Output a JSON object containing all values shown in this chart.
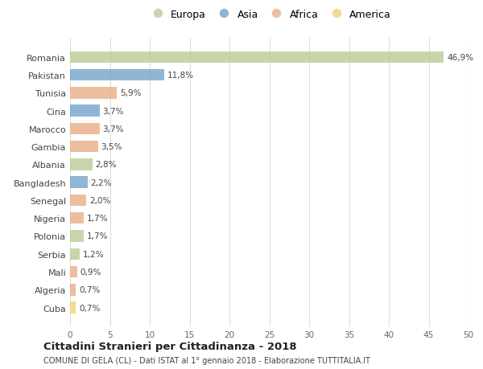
{
  "categories": [
    "Romania",
    "Pakistan",
    "Tunisia",
    "Cina",
    "Marocco",
    "Gambia",
    "Albania",
    "Bangladesh",
    "Senegal",
    "Nigeria",
    "Polonia",
    "Serbia",
    "Mali",
    "Algeria",
    "Cuba"
  ],
  "values": [
    46.9,
    11.8,
    5.9,
    3.7,
    3.7,
    3.5,
    2.8,
    2.2,
    2.0,
    1.7,
    1.7,
    1.2,
    0.9,
    0.7,
    0.7
  ],
  "labels": [
    "46,9%",
    "11,8%",
    "5,9%",
    "3,7%",
    "3,7%",
    "3,5%",
    "2,8%",
    "2,2%",
    "2,0%",
    "1,7%",
    "1,7%",
    "1,2%",
    "0,9%",
    "0,7%",
    "0,7%"
  ],
  "colors": [
    "#b5c98e",
    "#6a9ec7",
    "#e8a97e",
    "#6a9ec7",
    "#e8a97e",
    "#e8a97e",
    "#b5c98e",
    "#6a9ec7",
    "#e8a97e",
    "#e8a97e",
    "#b5c98e",
    "#b5c98e",
    "#e8a97e",
    "#e8a97e",
    "#f0d070"
  ],
  "legend_labels": [
    "Europa",
    "Asia",
    "Africa",
    "America"
  ],
  "legend_colors": [
    "#b5c98e",
    "#6a9ec7",
    "#e8a97e",
    "#f0d070"
  ],
  "title": "Cittadini Stranieri per Cittadinanza - 2018",
  "subtitle": "COMUNE DI GELA (CL) - Dati ISTAT al 1° gennaio 2018 - Elaborazione TUTTITALIA.IT",
  "xlim": [
    0,
    50
  ],
  "xticks": [
    0,
    5,
    10,
    15,
    20,
    25,
    30,
    35,
    40,
    45,
    50
  ],
  "bg_color": "#ffffff",
  "grid_color": "#dddddd",
  "bar_alpha": 0.75
}
